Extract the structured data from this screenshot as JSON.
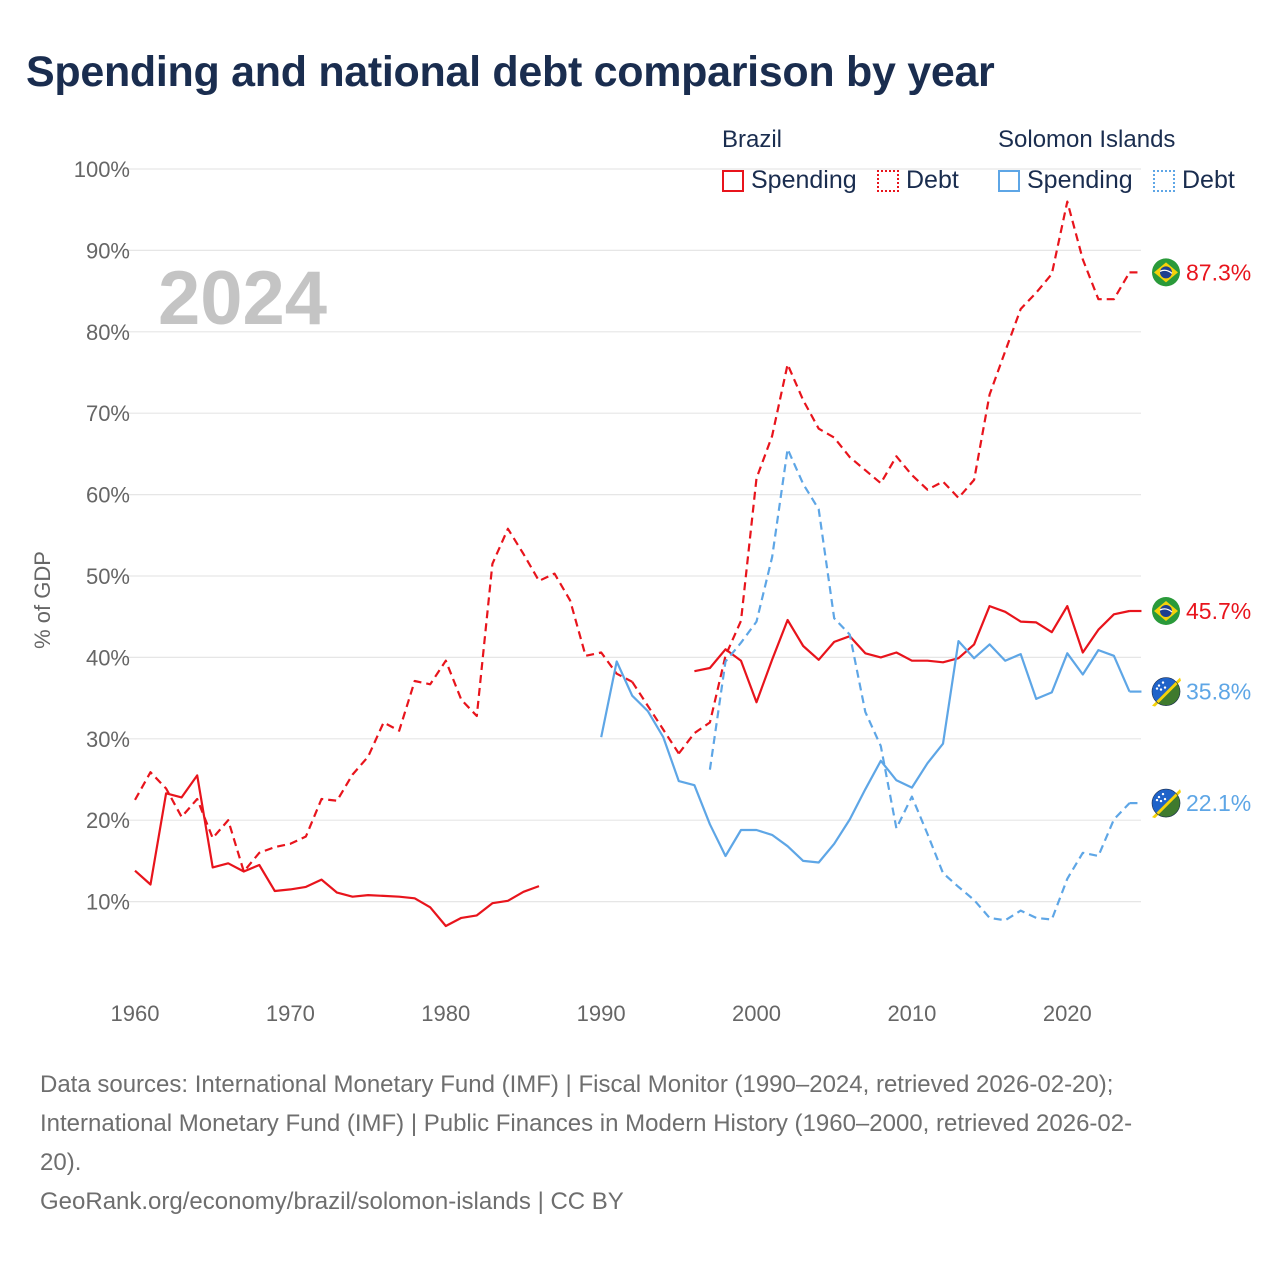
{
  "title": "Spending and national debt comparison by year",
  "legend": {
    "groups": [
      {
        "name": "Brazil",
        "color": "#e8141c",
        "items": [
          "Spending",
          "Debt"
        ]
      },
      {
        "name": "Solomon Islands",
        "color": "#5ea6e6",
        "items": [
          "Spending",
          "Debt"
        ]
      }
    ]
  },
  "colors": {
    "brazil": "#e8141c",
    "solomon": "#5ea6e6",
    "title": "#1a2d4f",
    "watermark": "#c4c4c4"
  },
  "chart_data": {
    "type": "line",
    "current_year": "2024",
    "ylabel": "% of GDP",
    "xlabel": "",
    "xlim": [
      1960,
      2025
    ],
    "ylim": [
      0,
      100
    ],
    "x_ticks": [
      1960,
      1970,
      1980,
      1990,
      2000,
      2010,
      2020
    ],
    "y_ticks": [
      10,
      20,
      30,
      40,
      50,
      60,
      70,
      80,
      90,
      100
    ],
    "y_tick_labels": [
      "10%",
      "20%",
      "30%",
      "40%",
      "50%",
      "60%",
      "70%",
      "80%",
      "90%",
      "100%"
    ],
    "grid": true,
    "series": [
      {
        "name": "Brazil Spending",
        "country": "brazil",
        "style": "solid",
        "end_label": "45.7%",
        "flag": "brazil-flag-icon",
        "x": [
          1960,
          1961,
          1962,
          1963,
          1964,
          1965,
          1966,
          1967,
          1968,
          1969,
          1970,
          1971,
          1972,
          1973,
          1974,
          1975,
          1976,
          1977,
          1978,
          1979,
          1980,
          1981,
          1982,
          1983,
          1984,
          1985,
          1986,
          1987,
          1988,
          1989,
          1990,
          1991,
          1992,
          1993,
          1994,
          1995,
          1996,
          1997,
          1998,
          1999,
          2000,
          2001,
          2002,
          2003,
          2004,
          2005,
          2006,
          2007,
          2008,
          2009,
          2010,
          2011,
          2012,
          2013,
          2014,
          2015,
          2016,
          2017,
          2018,
          2019,
          2020,
          2021,
          2022,
          2023,
          2024
        ],
        "values": [
          13.8,
          12.1,
          23.3,
          22.8,
          25.5,
          14.2,
          14.7,
          13.7,
          14.5,
          11.3,
          11.5,
          11.8,
          12.7,
          11.1,
          10.6,
          10.8,
          10.7,
          10.6,
          10.4,
          9.3,
          7.0,
          8.0,
          8.3,
          9.8,
          10.1,
          11.2,
          11.9,
          null,
          null,
          null,
          null,
          null,
          null,
          null,
          null,
          null,
          38.3,
          38.7,
          41.0,
          39.6,
          34.5,
          39.7,
          44.6,
          41.4,
          39.7,
          41.9,
          42.6,
          40.5,
          40.0,
          40.6,
          39.6,
          39.6,
          39.4,
          39.9,
          41.6,
          46.3,
          45.6,
          44.4,
          44.3,
          43.1,
          46.3,
          40.6,
          43.4,
          45.3,
          45.7
        ]
      },
      {
        "name": "Brazil Debt",
        "country": "brazil",
        "style": "dashed",
        "end_label": "87.3%",
        "flag": "brazil-flag-icon",
        "x": [
          1960,
          1961,
          1962,
          1963,
          1964,
          1965,
          1966,
          1967,
          1968,
          1969,
          1970,
          1971,
          1972,
          1973,
          1974,
          1975,
          1976,
          1977,
          1978,
          1979,
          1980,
          1981,
          1982,
          1983,
          1984,
          1985,
          1986,
          1987,
          1988,
          1989,
          1990,
          1991,
          1992,
          1993,
          1994,
          1995,
          1996,
          1997,
          1998,
          1999,
          2000,
          2001,
          2002,
          2003,
          2004,
          2005,
          2006,
          2007,
          2008,
          2009,
          2010,
          2011,
          2012,
          2013,
          2014,
          2015,
          2016,
          2017,
          2018,
          2019,
          2020,
          2021,
          2022,
          2023,
          2024
        ],
        "values": [
          22.5,
          25.9,
          23.9,
          20.4,
          22.6,
          17.8,
          20.0,
          13.7,
          16.0,
          16.7,
          17.1,
          18.0,
          22.6,
          22.4,
          25.6,
          27.8,
          32.0,
          31.0,
          37.1,
          36.7,
          39.6,
          34.8,
          32.8,
          51.5,
          55.8,
          52.7,
          49.4,
          50.3,
          47.0,
          40.2,
          40.6,
          38.0,
          37.0,
          null,
          null,
          28.2,
          30.7,
          32.0,
          40.2,
          44.5,
          62.0,
          67.2,
          76.0,
          71.6,
          68.1,
          67.0,
          64.6,
          63.0,
          61.4,
          64.7,
          62.4,
          60.6,
          61.6,
          59.6,
          61.8,
          72.3,
          77.6,
          82.8,
          84.8,
          87.1,
          96.0,
          88.9,
          84.0,
          84.0,
          87.3
        ],
        "gap_connect": [
          [
            1992,
            37.0
          ],
          [
            1995,
            28.2
          ]
        ]
      },
      {
        "name": "Solomon Islands Spending",
        "country": "solomon",
        "style": "solid",
        "end_label": "35.8%",
        "flag": "solomon-islands-flag-icon",
        "x": [
          1990,
          1991,
          1992,
          1993,
          1994,
          1995,
          1996,
          1997,
          1998,
          1999,
          2000,
          2001,
          2002,
          2003,
          2004,
          2005,
          2006,
          2007,
          2008,
          2009,
          2010,
          2011,
          2012,
          2013,
          2014,
          2015,
          2016,
          2017,
          2018,
          2019,
          2020,
          2021,
          2022,
          2023,
          2024
        ],
        "values": [
          30.2,
          39.5,
          35.3,
          33.4,
          30.2,
          24.8,
          24.3,
          19.5,
          15.6,
          18.8,
          18.8,
          18.2,
          16.8,
          15.0,
          14.8,
          17.1,
          20.1,
          23.8,
          27.3,
          24.9,
          24.0,
          27.0,
          29.4,
          42.0,
          39.9,
          41.6,
          39.6,
          40.4,
          34.9,
          35.7,
          40.5,
          37.9,
          40.9,
          40.2,
          35.8
        ]
      },
      {
        "name": "Solomon Islands Debt",
        "country": "solomon",
        "style": "dashed",
        "end_label": "22.1%",
        "flag": "solomon-islands-flag-icon",
        "x": [
          1997,
          1998,
          1999,
          2000,
          2001,
          2002,
          2003,
          2004,
          2005,
          2006,
          2007,
          2008,
          2009,
          2010,
          2011,
          2012,
          2013,
          2014,
          2015,
          2016,
          2017,
          2018,
          2019,
          2020,
          2021,
          2022,
          2023,
          2024
        ],
        "values": [
          26.2,
          39.5,
          41.8,
          44.4,
          52.3,
          65.6,
          61.3,
          58.2,
          44.8,
          42.8,
          33.3,
          29.1,
          19.0,
          22.9,
          18.3,
          13.5,
          11.8,
          10.2,
          8.0,
          7.7,
          8.9,
          8.0,
          7.8,
          12.8,
          16.0,
          15.6,
          20.1,
          22.1
        ]
      }
    ]
  },
  "footer": {
    "sources_line1": "Data sources: International Monetary Fund (IMF) | Fiscal Monitor (1990–2024, retrieved 2026-02-20);",
    "sources_line2": "International Monetary Fund (IMF) | Public Finances in Modern History (1960–2000, retrieved 2026-02-",
    "sources_line3": "20).",
    "attribution": "GeoRank.org/economy/brazil/solomon-islands | CC BY"
  }
}
